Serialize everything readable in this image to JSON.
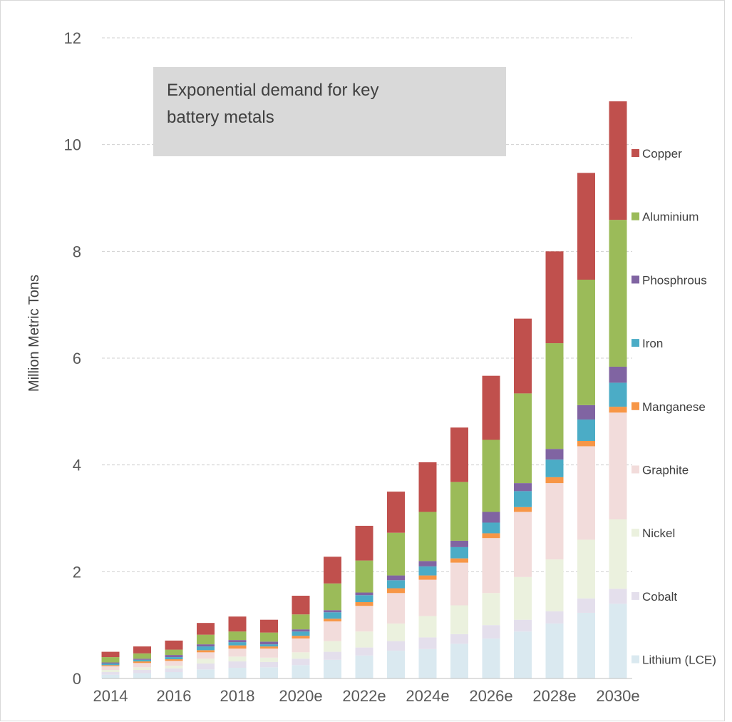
{
  "chart_data": {
    "type": "bar",
    "stacked": true,
    "title": "",
    "annotation": [
      "Exponential demand for key",
      "battery metals"
    ],
    "xlabel": "",
    "ylabel": "Million Metric Tons",
    "ylim": [
      0,
      12
    ],
    "yticks": [
      0,
      2,
      4,
      6,
      8,
      10,
      12
    ],
    "grid": true,
    "legend_position": "right",
    "categories": [
      "2014",
      "2015",
      "2016",
      "2017",
      "2018",
      "2019",
      "2020e",
      "2021e",
      "2022e",
      "2023e",
      "2024e",
      "2025e",
      "2026e",
      "2027e",
      "2028e",
      "2029e",
      "2030e"
    ],
    "xtick_labels": [
      "2014",
      "2016",
      "2018",
      "2020e",
      "2022e",
      "2024e",
      "2026e",
      "2028e",
      "2030e"
    ],
    "series": [
      {
        "name": "Lithium (LCE)",
        "color": "#dae9f0",
        "values": [
          0.07,
          0.1,
          0.12,
          0.17,
          0.2,
          0.21,
          0.25,
          0.35,
          0.43,
          0.52,
          0.55,
          0.65,
          0.75,
          0.88,
          1.03,
          1.23,
          1.4
        ]
      },
      {
        "name": "Cobalt",
        "color": "#e4dfec",
        "values": [
          0.05,
          0.06,
          0.07,
          0.11,
          0.12,
          0.1,
          0.12,
          0.15,
          0.15,
          0.18,
          0.22,
          0.18,
          0.25,
          0.22,
          0.23,
          0.27,
          0.28
        ]
      },
      {
        "name": "Nickel",
        "color": "#ebf1de",
        "values": [
          0.04,
          0.05,
          0.05,
          0.09,
          0.09,
          0.08,
          0.12,
          0.2,
          0.3,
          0.33,
          0.4,
          0.54,
          0.6,
          0.8,
          0.97,
          1.1,
          1.3
        ]
      },
      {
        "name": "Graphite",
        "color": "#f2dcdb",
        "values": [
          0.07,
          0.08,
          0.09,
          0.12,
          0.15,
          0.17,
          0.26,
          0.37,
          0.48,
          0.57,
          0.68,
          0.8,
          1.03,
          1.22,
          1.43,
          1.75,
          2.0
        ]
      },
      {
        "name": "Manganese",
        "color": "#f79646",
        "values": [
          0.02,
          0.03,
          0.03,
          0.04,
          0.06,
          0.04,
          0.05,
          0.05,
          0.07,
          0.09,
          0.08,
          0.08,
          0.09,
          0.09,
          0.11,
          0.1,
          0.11
        ]
      },
      {
        "name": "Iron",
        "color": "#4bacc6",
        "values": [
          0.03,
          0.03,
          0.04,
          0.07,
          0.06,
          0.04,
          0.08,
          0.12,
          0.13,
          0.15,
          0.17,
          0.21,
          0.2,
          0.3,
          0.33,
          0.4,
          0.45
        ]
      },
      {
        "name": "Phosphrous",
        "color": "#8064a2",
        "values": [
          0.02,
          0.02,
          0.04,
          0.04,
          0.04,
          0.05,
          0.04,
          0.04,
          0.05,
          0.09,
          0.1,
          0.12,
          0.2,
          0.15,
          0.2,
          0.27,
          0.3
        ]
      },
      {
        "name": "Aluminium",
        "color": "#9bbb59",
        "values": [
          0.1,
          0.1,
          0.1,
          0.18,
          0.16,
          0.17,
          0.28,
          0.5,
          0.6,
          0.8,
          0.92,
          1.1,
          1.35,
          1.68,
          1.98,
          2.35,
          2.75
        ]
      },
      {
        "name": "Copper",
        "color": "#c0504d",
        "values": [
          0.1,
          0.13,
          0.17,
          0.22,
          0.28,
          0.24,
          0.35,
          0.5,
          0.65,
          0.77,
          0.93,
          1.02,
          1.2,
          1.4,
          1.72,
          2.0,
          2.22
        ]
      }
    ]
  }
}
